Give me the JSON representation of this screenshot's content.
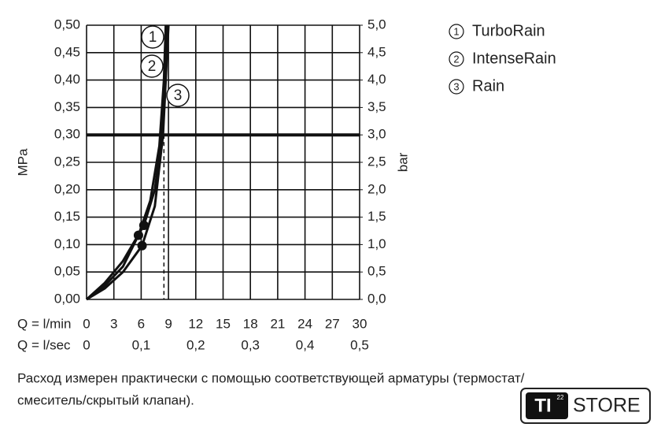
{
  "chart_data": {
    "type": "line",
    "ylabel": "MPa",
    "y2label": "bar",
    "xlabel": "Q = l/min",
    "x2label": "Q = l/sec",
    "xlim": [
      0,
      30
    ],
    "xticks": [
      0,
      3,
      6,
      9,
      12,
      15,
      18,
      21,
      24,
      27,
      30
    ],
    "x2lim": [
      0,
      0.5
    ],
    "x2ticks": [
      0,
      {
        "value": 0.1,
        "label": "0,1"
      },
      {
        "value": 0.2,
        "label": "0,2"
      },
      {
        "value": 0.3,
        "label": "0,3"
      },
      {
        "value": 0.4,
        "label": "0,4"
      },
      {
        "value": 0.5,
        "label": "0,5"
      }
    ],
    "ylim": [
      0,
      0.5
    ],
    "yticks": [
      {
        "value": 0,
        "label": "0,00"
      },
      {
        "value": 0.05,
        "label": "0,05"
      },
      {
        "value": 0.1,
        "label": "0,10"
      },
      {
        "value": 0.15,
        "label": "0,15"
      },
      {
        "value": 0.2,
        "label": "0,20"
      },
      {
        "value": 0.25,
        "label": "0,25"
      },
      {
        "value": 0.3,
        "label": "0,30"
      },
      {
        "value": 0.35,
        "label": "0,35"
      },
      {
        "value": 0.4,
        "label": "0,40"
      },
      {
        "value": 0.45,
        "label": "0,45"
      },
      {
        "value": 0.5,
        "label": "0,50"
      }
    ],
    "y2lim": [
      0,
      5
    ],
    "y2ticks": [
      {
        "value": 0,
        "label": "0,0"
      },
      {
        "value": 0.5,
        "label": "0,5"
      },
      {
        "value": 1,
        "label": "1,0"
      },
      {
        "value": 1.5,
        "label": "1,5"
      },
      {
        "value": 2,
        "label": "2,0"
      },
      {
        "value": 2.5,
        "label": "2,5"
      },
      {
        "value": 3,
        "label": "3,0"
      },
      {
        "value": 3.5,
        "label": "3,5"
      },
      {
        "value": 4,
        "label": "4,0"
      },
      {
        "value": 4.5,
        "label": "4,5"
      },
      {
        "value": 5,
        "label": "5,0"
      }
    ],
    "grid": true,
    "color": "#111",
    "series": [
      {
        "name": "TurboRain",
        "label": "1",
        "x": [
          0,
          2,
          4,
          6.3,
          7.5,
          8.3,
          8.6,
          8.8
        ],
        "values": [
          0,
          0.03,
          0.07,
          0.135,
          0.2,
          0.3,
          0.4,
          0.5
        ]
      },
      {
        "name": "IntenseRain",
        "label": "2",
        "x": [
          0,
          2,
          4,
          5.7,
          7,
          8,
          8.5,
          8.7
        ],
        "values": [
          0,
          0.025,
          0.06,
          0.117,
          0.18,
          0.28,
          0.4,
          0.5
        ]
      },
      {
        "name": "Rain",
        "label": "3",
        "x": [
          0,
          2,
          4,
          6.1,
          7.5,
          8.4,
          8.7,
          9
        ],
        "values": [
          0,
          0.02,
          0.05,
          0.098,
          0.17,
          0.3,
          0.4,
          0.5
        ]
      }
    ],
    "points": [
      {
        "x": 6.3,
        "y": 0.135
      },
      {
        "x": 5.7,
        "y": 0.117
      },
      {
        "x": 6.1,
        "y": 0.098
      }
    ],
    "hline": 0.3,
    "vline": 8.5
  },
  "footnote": [
    "Расход измерен практически с помощью соответствующей арматуры (термостат/",
    "смеситель/скрытый клапан)."
  ],
  "logo": {
    "left": "TI",
    "sup": "22",
    "right": "STORE"
  }
}
